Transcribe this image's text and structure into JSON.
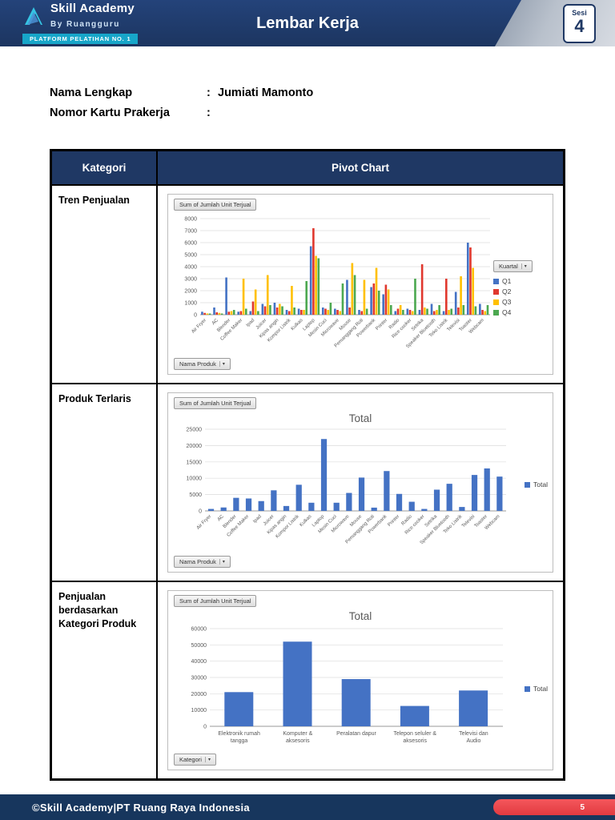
{
  "header": {
    "title": "Lembar Kerja",
    "logo": {
      "line1": "Skill Academy",
      "line2": "By Ruangguru",
      "tagline": "PLATFORM PELATIHAN NO. 1"
    },
    "session": {
      "label": "Sesi",
      "number": "4"
    }
  },
  "form": {
    "rows": [
      {
        "label": "Nama Lengkap",
        "separator": ":",
        "value": "Jumiati Mamonto"
      },
      {
        "label": "Nomor Kartu Prakerja",
        "separator": ":",
        "value": ""
      }
    ]
  },
  "table": {
    "headers": {
      "category": "Kategori",
      "chart": "Pivot Chart"
    },
    "rows": [
      {
        "category": "Tren Penjualan"
      },
      {
        "category": "Produk Terlaris"
      },
      {
        "category": "Penjualan berdasarkan Kategori Produk"
      }
    ]
  },
  "icons": {
    "dropdown_arrow": "▾"
  },
  "footer": {
    "text": "©Skill Academy|PT Ruang Raya Indonesia",
    "page_number": "5"
  },
  "chart_data": [
    {
      "type": "bar",
      "title": "",
      "field_button": "Sum of Jumlah Unit Terjual",
      "axis_button": "Nama Produk",
      "legend_button": "Kuartal",
      "legend_position": "right",
      "grid": true,
      "categories": [
        "Air Fryer",
        "AC",
        "Blender",
        "Coffee Maker",
        "Ipad",
        "Juicer",
        "Kipas angin",
        "Kompor Listrik",
        "Kulkas",
        "Laptop",
        "Mesin Cuci",
        "Microwave",
        "Mouse",
        "Pemanggang Roti",
        "Powerbank",
        "Printer",
        "Radio",
        "Rice cooker",
        "Setrika",
        "Speaker Bluetooth",
        "Teko Listrik",
        "Televisi",
        "Toaster",
        "Webcam"
      ],
      "series": [
        {
          "name": "Q1",
          "color": "#4472C4",
          "values": [
            250,
            600,
            3100,
            250,
            300,
            900,
            1000,
            400,
            500,
            5700,
            600,
            500,
            2900,
            400,
            2300,
            1700,
            300,
            500,
            400,
            900,
            300,
            1900,
            6000,
            900
          ]
        },
        {
          "name": "Q2",
          "color": "#E0382E",
          "values": [
            150,
            200,
            250,
            300,
            1100,
            700,
            600,
            300,
            400,
            7200,
            500,
            400,
            600,
            300,
            2600,
            2500,
            500,
            400,
            4200,
            300,
            3000,
            600,
            5600,
            400
          ]
        },
        {
          "name": "Q3",
          "color": "#FFC000",
          "values": [
            100,
            150,
            300,
            3000,
            2100,
            3300,
            900,
            2400,
            400,
            4900,
            400,
            300,
            4300,
            2900,
            3900,
            2100,
            800,
            300,
            600,
            400,
            400,
            3200,
            3900,
            300
          ]
        },
        {
          "name": "Q4",
          "color": "#4CA850",
          "values": [
            100,
            100,
            400,
            500,
            300,
            800,
            700,
            600,
            2800,
            4700,
            1000,
            2600,
            3300,
            500,
            2000,
            800,
            400,
            3000,
            500,
            800,
            500,
            800,
            700,
            800
          ]
        }
      ],
      "ylim": [
        0,
        8000
      ],
      "ytick_step": 1000
    },
    {
      "type": "bar",
      "title": "Total",
      "field_button": "Sum of Jumlah Unit Terjual",
      "axis_button": "Nama Produk",
      "legend_label": "Total",
      "legend_position": "right",
      "bar_color": "#4472C4",
      "grid": true,
      "categories": [
        "Air Fryer",
        "AC",
        "Blender",
        "Coffee Maker",
        "Ipad",
        "Juicer",
        "Kipas angin",
        "Kompor Listrik",
        "Kulkas",
        "Laptop",
        "Mesin Cuci",
        "Microwave",
        "Mouse",
        "Pemanggang Roti",
        "Powerbank",
        "Printer",
        "Radio",
        "Rice cooker",
        "Setrika",
        "Speaker Bluetooth",
        "Teko Listrik",
        "Televisi",
        "Toaster",
        "Webcam"
      ],
      "values": [
        600,
        1050,
        4000,
        3800,
        3000,
        6300,
        1500,
        8000,
        2500,
        22000,
        2500,
        5500,
        10200,
        1000,
        12200,
        5200,
        2800,
        600,
        6500,
        8300,
        1200,
        11000,
        13000,
        10500
      ],
      "ylim": [
        0,
        25000
      ],
      "ytick_step": 5000
    },
    {
      "type": "bar",
      "title": "Total",
      "field_button": "Sum of Jumlah Unit Terjual",
      "axis_button": "Kategori",
      "legend_label": "Total",
      "legend_position": "right",
      "bar_color": "#4472C4",
      "grid": true,
      "categories": [
        "Elektronik rumah tangga",
        "Komputer & aksesoris",
        "Peralatan dapur",
        "Telepon seluler & aksesoris",
        "Televisi dan Audio"
      ],
      "values": [
        21000,
        52000,
        29000,
        12500,
        22000
      ],
      "ylim": [
        0,
        60000
      ],
      "ytick_step": 10000
    }
  ]
}
